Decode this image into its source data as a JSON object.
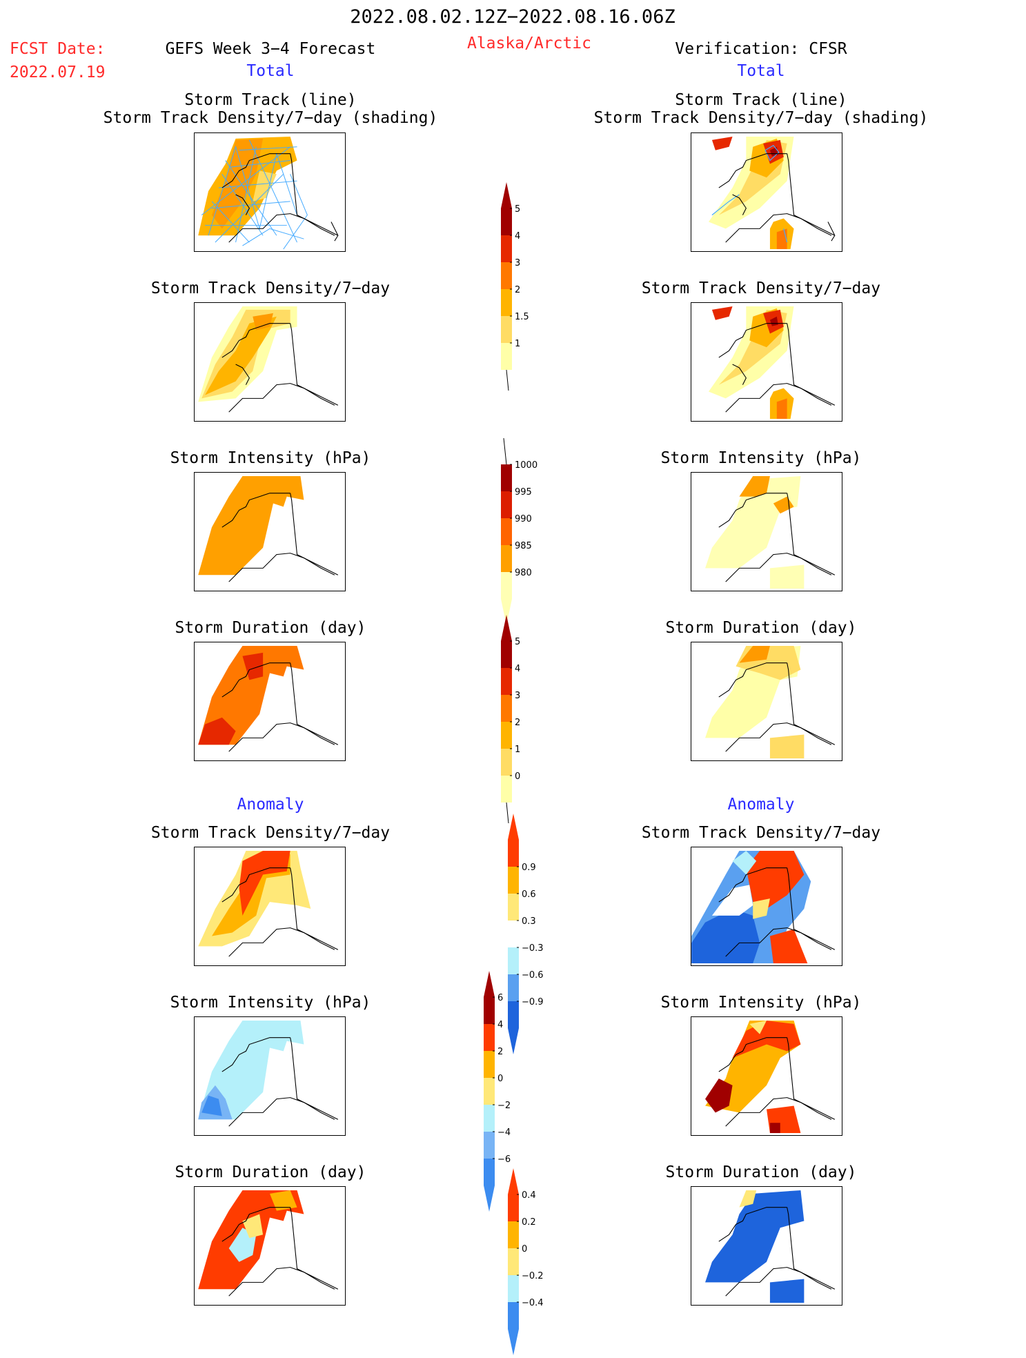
{
  "header": {
    "period": "2022.08.02.12Z−2022.08.16.06Z",
    "fcst_label": "FCST Date:",
    "fcst_date": "2022.07.19",
    "model_title": "GEFS Week 3−4 Forecast",
    "region": "Alaska/Arctic",
    "verification": "Verification: CFSR"
  },
  "sections": {
    "total_left": "Total",
    "total_right": "Total",
    "anomaly_left": "Anomaly",
    "anomaly_right": "Anomaly"
  },
  "panel_titles": {
    "track_line": "Storm Track (line)",
    "track_density_shading": "Storm Track Density/7−day (shading)",
    "track_density": "Storm Track Density/7−day",
    "intensity": "Storm Intensity (hPa)",
    "duration": "Storm Duration (day)"
  },
  "colorbars": [
    {
      "id": "density",
      "labels": [
        "5",
        "4",
        "3",
        "2",
        "1.5",
        "1"
      ],
      "colors": [
        "#ffffa8",
        "#ffdc64",
        "#ffb400",
        "#ff7800",
        "#e62800",
        "#a00000"
      ],
      "extends": "max"
    },
    {
      "id": "intensity",
      "labels": [
        "1000",
        "995",
        "990",
        "985",
        "980"
      ],
      "colors": [
        "#ffffb4",
        "#ffa000",
        "#ff6400",
        "#dc1e00",
        "#a00000"
      ],
      "extends": "min"
    },
    {
      "id": "duration",
      "labels": [
        "5",
        "4",
        "3",
        "2",
        "1",
        "0"
      ],
      "colors": [
        "#ffffa8",
        "#ffdc64",
        "#ffb400",
        "#ff7800",
        "#e62800",
        "#a00000"
      ],
      "extends": "max"
    },
    {
      "id": "density_anom",
      "labels": [
        "0.9",
        "0.6",
        "0.3",
        "−0.3",
        "−0.6",
        "−0.9"
      ],
      "colors": [
        "#1e64dc",
        "#5aa0f0",
        "#b4f0fa",
        "#ffffff",
        "#ffe878",
        "#ffb400",
        "#ff3c00"
      ],
      "extends": "both"
    },
    {
      "id": "intensity_anom",
      "labels": [
        "6",
        "4",
        "2",
        "0",
        "−2",
        "−4",
        "−6"
      ],
      "colors": [
        "#3c8cf0",
        "#78b4f5",
        "#b4f0fa",
        "#ffe878",
        "#ffb400",
        "#ff3c00",
        "#a00000"
      ],
      "extends": "both"
    },
    {
      "id": "duration_anom",
      "labels": [
        "0.4",
        "0.2",
        "0",
        "−0.2",
        "−0.4"
      ],
      "colors": [
        "#3c8cf0",
        "#b4f0fa",
        "#ffe878",
        "#ffb400",
        "#ff3c00"
      ],
      "extends": "both"
    }
  ]
}
